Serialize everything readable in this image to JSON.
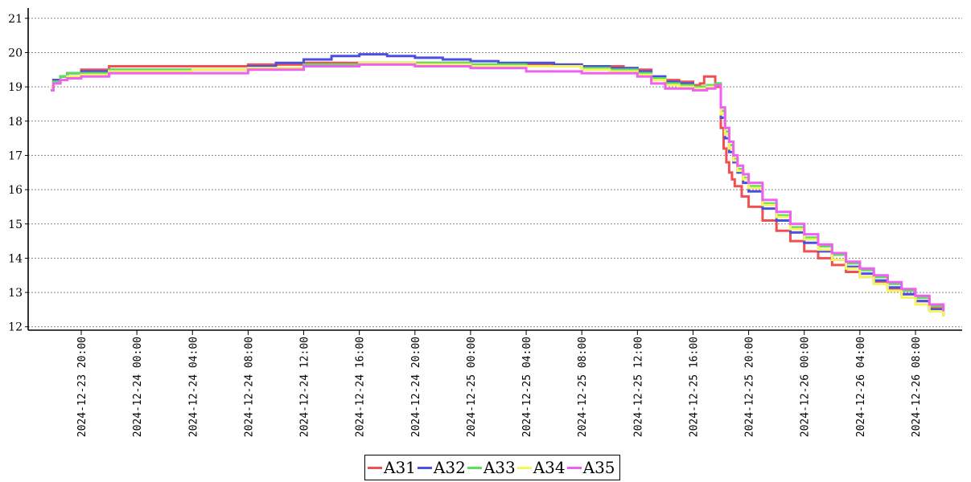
{
  "chart_data": {
    "type": "line",
    "title": "",
    "xlabel": "",
    "ylabel": "",
    "ylim": [
      11.9,
      21.3
    ],
    "y_ticks": [
      12,
      13,
      14,
      15,
      16,
      17,
      18,
      19,
      20,
      21
    ],
    "grid": "horizontal dashed",
    "legend_position": "bottom-center",
    "x_ticks": [
      "2024-12-23  20:00",
      "2024-12-24  00:00",
      "2024-12-24  04:00",
      "2024-12-24  08:00",
      "2024-12-24  12:00",
      "2024-12-24  16:00",
      "2024-12-24  20:00",
      "2024-12-25  00:00",
      "2024-12-25  04:00",
      "2024-12-25  08:00",
      "2024-12-25  12:00",
      "2024-12-25  16:00",
      "2024-12-25  20:00",
      "2024-12-26  00:00",
      "2024-12-26  04:00",
      "2024-12-26  08:00"
    ],
    "x_tick_hours": [
      0,
      4,
      8,
      12,
      16,
      20,
      24,
      28,
      32,
      36,
      40,
      44,
      48,
      52,
      56,
      60
    ],
    "x_range_hours": [
      -3.5,
      63.0
    ],
    "series": [
      {
        "name": "A31",
        "color": "#f25050",
        "x": [
          -2.2,
          -2.0,
          -1.5,
          -1.0,
          0,
          2,
          4,
          8,
          12,
          16,
          20,
          24,
          28,
          32,
          36,
          38,
          39,
          40,
          41,
          42,
          43,
          44,
          44.5,
          44.8,
          45.2,
          45.6,
          46,
          46.2,
          46.4,
          46.6,
          46.8,
          47,
          47.5,
          48,
          49,
          50,
          51,
          52,
          53,
          54,
          55,
          56,
          57,
          58,
          59,
          60,
          61,
          62
        ],
        "y": [
          19.0,
          19.2,
          19.3,
          19.4,
          19.5,
          19.6,
          19.6,
          19.6,
          19.65,
          19.7,
          19.7,
          19.7,
          19.65,
          19.65,
          19.6,
          19.6,
          19.55,
          19.5,
          19.3,
          19.2,
          19.15,
          19.05,
          19.1,
          19.3,
          19.3,
          19.0,
          17.8,
          17.2,
          16.8,
          16.5,
          16.3,
          16.1,
          15.8,
          15.5,
          15.1,
          14.8,
          14.5,
          14.2,
          14.0,
          13.8,
          13.6,
          13.45,
          13.3,
          13.1,
          12.95,
          12.75,
          12.55,
          12.35
        ]
      },
      {
        "name": "A32",
        "color": "#4b50e0",
        "x": [
          -2.2,
          -2.0,
          -1.5,
          -1.0,
          0,
          2,
          4,
          8,
          12,
          14,
          16,
          18,
          20,
          22,
          24,
          26,
          28,
          30,
          32,
          34,
          36,
          38,
          40,
          41,
          42,
          43,
          44,
          45,
          45.6,
          46,
          46.3,
          46.6,
          46.9,
          47.2,
          47.6,
          48,
          49,
          50,
          51,
          52,
          53,
          54,
          55,
          56,
          57,
          58,
          59,
          60,
          61,
          62
        ],
        "y": [
          19.0,
          19.2,
          19.3,
          19.4,
          19.45,
          19.5,
          19.5,
          19.5,
          19.6,
          19.7,
          19.8,
          19.9,
          19.95,
          19.9,
          19.85,
          19.8,
          19.75,
          19.7,
          19.7,
          19.65,
          19.6,
          19.55,
          19.45,
          19.3,
          19.15,
          19.1,
          19.0,
          19.0,
          19.1,
          18.1,
          17.5,
          17.1,
          16.8,
          16.5,
          16.2,
          15.95,
          15.45,
          15.1,
          14.75,
          14.45,
          14.2,
          13.95,
          13.75,
          13.55,
          13.35,
          13.15,
          12.95,
          12.75,
          12.5,
          12.3
        ]
      },
      {
        "name": "A33",
        "color": "#5ae05a",
        "x": [
          -2.2,
          -2.0,
          -1.5,
          -1.0,
          0,
          2,
          4,
          8,
          12,
          16,
          20,
          24,
          28,
          32,
          36,
          38,
          40,
          41,
          42,
          43,
          44,
          45,
          45.6,
          46,
          46.3,
          46.6,
          46.9,
          47.2,
          47.6,
          48,
          49,
          50,
          51,
          52,
          53,
          54,
          55,
          56,
          57,
          58,
          59,
          60,
          61,
          62
        ],
        "y": [
          19.0,
          19.15,
          19.3,
          19.4,
          19.4,
          19.5,
          19.5,
          19.5,
          19.55,
          19.65,
          19.7,
          19.7,
          19.65,
          19.6,
          19.55,
          19.5,
          19.4,
          19.25,
          19.1,
          19.05,
          19.0,
          19.05,
          19.1,
          18.3,
          17.7,
          17.3,
          16.9,
          16.6,
          16.35,
          16.1,
          15.6,
          15.25,
          14.9,
          14.6,
          14.35,
          14.1,
          13.85,
          13.65,
          13.45,
          13.25,
          13.05,
          12.85,
          12.6,
          12.4
        ]
      },
      {
        "name": "A34",
        "color": "#f5f560",
        "x": [
          -2.2,
          -2.0,
          -1.5,
          -1.0,
          0,
          2,
          4,
          8,
          12,
          16,
          20,
          24,
          28,
          32,
          36,
          38,
          40,
          41,
          42,
          43,
          44,
          45,
          45.6,
          46,
          46.3,
          46.6,
          46.9,
          47.2,
          47.6,
          48,
          49,
          50,
          51,
          52,
          53,
          54,
          55,
          56,
          57,
          58,
          59,
          60,
          61,
          62
        ],
        "y": [
          19.0,
          19.1,
          19.2,
          19.3,
          19.35,
          19.45,
          19.45,
          19.5,
          19.55,
          19.6,
          19.7,
          19.65,
          19.6,
          19.6,
          19.5,
          19.45,
          19.35,
          19.2,
          19.05,
          19.0,
          18.95,
          19.0,
          19.05,
          18.2,
          17.6,
          17.2,
          16.85,
          16.55,
          16.3,
          16.05,
          15.55,
          15.2,
          14.85,
          14.55,
          14.25,
          13.95,
          13.7,
          13.45,
          13.25,
          13.05,
          12.85,
          12.65,
          12.45,
          12.3
        ]
      },
      {
        "name": "A35",
        "color": "#f060f0",
        "x": [
          -2.2,
          -2.0,
          -1.5,
          -1.0,
          0,
          2,
          4,
          8,
          12,
          16,
          20,
          24,
          28,
          32,
          36,
          38,
          40,
          41,
          42,
          43,
          44,
          45,
          45.6,
          46,
          46.3,
          46.6,
          46.9,
          47.2,
          47.6,
          48,
          49,
          50,
          51,
          52,
          53,
          54,
          55,
          56,
          57,
          58,
          59,
          60,
          61,
          62
        ],
        "y": [
          18.9,
          19.1,
          19.2,
          19.25,
          19.3,
          19.4,
          19.4,
          19.4,
          19.5,
          19.6,
          19.65,
          19.6,
          19.55,
          19.45,
          19.4,
          19.4,
          19.3,
          19.1,
          18.95,
          18.95,
          18.9,
          18.95,
          19.05,
          18.4,
          17.8,
          17.4,
          17.0,
          16.7,
          16.45,
          16.2,
          15.7,
          15.35,
          15.0,
          14.7,
          14.4,
          14.15,
          13.9,
          13.7,
          13.5,
          13.3,
          13.1,
          12.9,
          12.65,
          12.45
        ]
      }
    ]
  }
}
